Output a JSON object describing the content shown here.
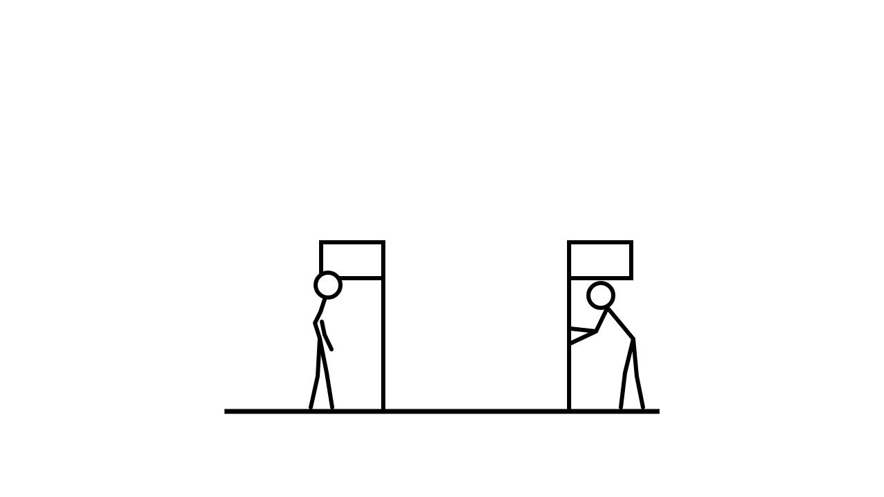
{
  "scene": {
    "description_free": true,
    "colors": {
      "background": "#ffffff",
      "ink": "#000000"
    },
    "elements": {
      "ground": "ground-line",
      "left_frame": "phone-booth-left",
      "right_frame": "phone-booth-right",
      "left_figure": "stick-figure-left",
      "right_figure": "stick-figure-right"
    }
  }
}
